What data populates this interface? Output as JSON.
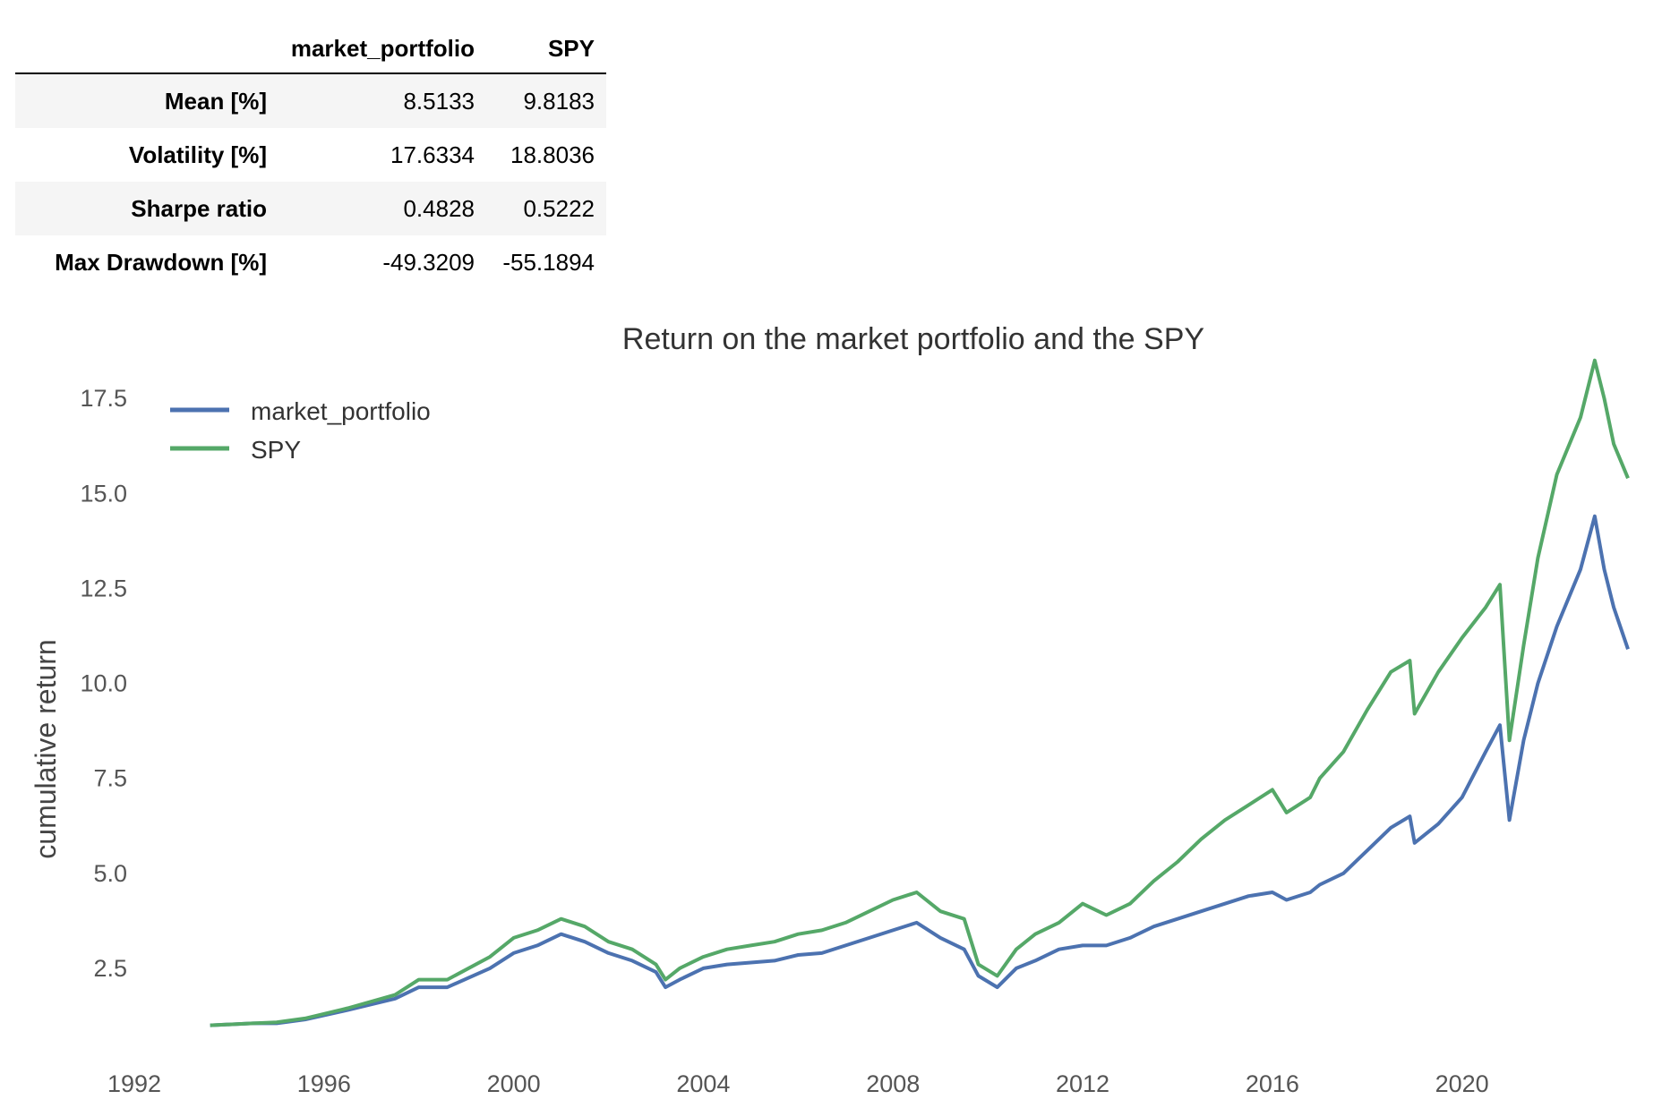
{
  "table": {
    "columns": [
      "market_portfolio",
      "SPY"
    ],
    "rows": [
      {
        "label": "Mean [%]",
        "values": [
          "8.5133",
          "9.8183"
        ]
      },
      {
        "label": "Volatility [%]",
        "values": [
          "17.6334",
          "18.8036"
        ]
      },
      {
        "label": "Sharpe ratio",
        "values": [
          "0.4828",
          "0.5222"
        ]
      },
      {
        "label": "Max Drawdown [%]",
        "values": [
          "-49.3209",
          "-55.1894"
        ]
      }
    ]
  },
  "chart_data": {
    "type": "line",
    "title": "Return on the market portfolio and the SPY",
    "xlabel": "",
    "ylabel": "cumulative return",
    "xlim": [
      1992,
      2023.5
    ],
    "ylim": [
      0,
      18.8
    ],
    "xticks": [
      "1992",
      "1996",
      "2000",
      "2004",
      "2008",
      "2012",
      "2016",
      "2020"
    ],
    "yticks": [
      "2.5",
      "5.0",
      "7.5",
      "10.0",
      "12.5",
      "15.0",
      "17.5"
    ],
    "grid": false,
    "legend_position": "upper-left",
    "series": [
      {
        "name": "market_portfolio",
        "color": "#4c72b0",
        "points": [
          [
            1993.6,
            1.0
          ],
          [
            1994.5,
            1.05
          ],
          [
            1995.0,
            1.05
          ],
          [
            1995.6,
            1.15
          ],
          [
            1996.5,
            1.4
          ],
          [
            1997.5,
            1.7
          ],
          [
            1998.0,
            2.0
          ],
          [
            1998.6,
            2.0
          ],
          [
            1999.5,
            2.5
          ],
          [
            2000.0,
            2.9
          ],
          [
            2000.5,
            3.1
          ],
          [
            2001.0,
            3.4
          ],
          [
            2001.5,
            3.2
          ],
          [
            2002.0,
            2.9
          ],
          [
            2002.5,
            2.7
          ],
          [
            2003.0,
            2.4
          ],
          [
            2003.2,
            2.0
          ],
          [
            2003.5,
            2.2
          ],
          [
            2004.0,
            2.5
          ],
          [
            2004.5,
            2.6
          ],
          [
            2005.0,
            2.65
          ],
          [
            2005.5,
            2.7
          ],
          [
            2006.0,
            2.85
          ],
          [
            2006.5,
            2.9
          ],
          [
            2007.0,
            3.1
          ],
          [
            2007.5,
            3.3
          ],
          [
            2008.0,
            3.5
          ],
          [
            2008.5,
            3.7
          ],
          [
            2009.0,
            3.3
          ],
          [
            2009.5,
            3.0
          ],
          [
            2009.8,
            2.3
          ],
          [
            2010.2,
            2.0
          ],
          [
            2010.6,
            2.5
          ],
          [
            2011.0,
            2.7
          ],
          [
            2011.5,
            3.0
          ],
          [
            2012.0,
            3.1
          ],
          [
            2012.5,
            3.1
          ],
          [
            2013.0,
            3.3
          ],
          [
            2013.5,
            3.6
          ],
          [
            2014.0,
            3.8
          ],
          [
            2014.5,
            4.0
          ],
          [
            2015.0,
            4.2
          ],
          [
            2015.5,
            4.4
          ],
          [
            2016.0,
            4.5
          ],
          [
            2016.3,
            4.3
          ],
          [
            2016.8,
            4.5
          ],
          [
            2017.0,
            4.7
          ],
          [
            2017.5,
            5.0
          ],
          [
            2018.0,
            5.6
          ],
          [
            2018.5,
            6.2
          ],
          [
            2018.9,
            6.5
          ],
          [
            2019.0,
            5.8
          ],
          [
            2019.5,
            6.3
          ],
          [
            2020.0,
            7.0
          ],
          [
            2020.5,
            8.2
          ],
          [
            2020.8,
            8.9
          ],
          [
            2021.0,
            6.4
          ],
          [
            2021.3,
            8.5
          ],
          [
            2021.6,
            10.0
          ],
          [
            2022.0,
            11.5
          ],
          [
            2022.5,
            13.0
          ],
          [
            2022.8,
            14.4
          ],
          [
            2023.0,
            13.0
          ],
          [
            2023.2,
            12.0
          ],
          [
            2023.5,
            10.9
          ]
        ]
      },
      {
        "name": "SPY",
        "color": "#55a868",
        "points": [
          [
            1993.6,
            1.0
          ],
          [
            1994.5,
            1.05
          ],
          [
            1995.0,
            1.08
          ],
          [
            1995.6,
            1.18
          ],
          [
            1996.5,
            1.45
          ],
          [
            1997.5,
            1.8
          ],
          [
            1998.0,
            2.2
          ],
          [
            1998.6,
            2.2
          ],
          [
            1999.5,
            2.8
          ],
          [
            2000.0,
            3.3
          ],
          [
            2000.5,
            3.5
          ],
          [
            2001.0,
            3.8
          ],
          [
            2001.5,
            3.6
          ],
          [
            2002.0,
            3.2
          ],
          [
            2002.5,
            3.0
          ],
          [
            2003.0,
            2.6
          ],
          [
            2003.2,
            2.2
          ],
          [
            2003.5,
            2.5
          ],
          [
            2004.0,
            2.8
          ],
          [
            2004.5,
            3.0
          ],
          [
            2005.0,
            3.1
          ],
          [
            2005.5,
            3.2
          ],
          [
            2006.0,
            3.4
          ],
          [
            2006.5,
            3.5
          ],
          [
            2007.0,
            3.7
          ],
          [
            2007.5,
            4.0
          ],
          [
            2008.0,
            4.3
          ],
          [
            2008.5,
            4.5
          ],
          [
            2009.0,
            4.0
          ],
          [
            2009.5,
            3.8
          ],
          [
            2009.8,
            2.6
          ],
          [
            2010.2,
            2.3
          ],
          [
            2010.6,
            3.0
          ],
          [
            2011.0,
            3.4
          ],
          [
            2011.5,
            3.7
          ],
          [
            2012.0,
            4.2
          ],
          [
            2012.5,
            3.9
          ],
          [
            2013.0,
            4.2
          ],
          [
            2013.5,
            4.8
          ],
          [
            2014.0,
            5.3
          ],
          [
            2014.5,
            5.9
          ],
          [
            2015.0,
            6.4
          ],
          [
            2015.5,
            6.8
          ],
          [
            2016.0,
            7.2
          ],
          [
            2016.3,
            6.6
          ],
          [
            2016.8,
            7.0
          ],
          [
            2017.0,
            7.5
          ],
          [
            2017.5,
            8.2
          ],
          [
            2018.0,
            9.3
          ],
          [
            2018.5,
            10.3
          ],
          [
            2018.9,
            10.6
          ],
          [
            2019.0,
            9.2
          ],
          [
            2019.5,
            10.3
          ],
          [
            2020.0,
            11.2
          ],
          [
            2020.5,
            12.0
          ],
          [
            2020.8,
            12.6
          ],
          [
            2021.0,
            8.5
          ],
          [
            2021.3,
            11.0
          ],
          [
            2021.6,
            13.3
          ],
          [
            2022.0,
            15.5
          ],
          [
            2022.5,
            17.0
          ],
          [
            2022.8,
            18.5
          ],
          [
            2023.0,
            17.5
          ],
          [
            2023.2,
            16.3
          ],
          [
            2023.5,
            15.4
          ]
        ]
      }
    ]
  }
}
